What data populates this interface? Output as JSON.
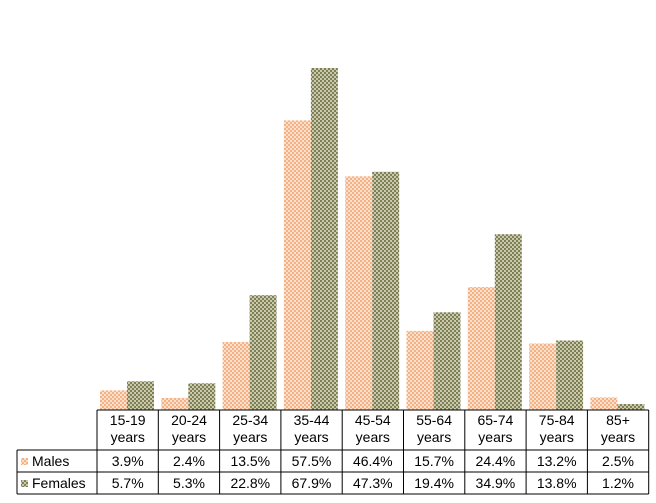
{
  "chart_data": {
    "type": "bar",
    "categories": [
      [
        "15-19",
        "years"
      ],
      [
        "20-24",
        "years"
      ],
      [
        "25-34",
        "years"
      ],
      [
        "35-44",
        "years"
      ],
      [
        "45-54",
        "years"
      ],
      [
        "55-64",
        "years"
      ],
      [
        "65-74",
        "years"
      ],
      [
        "75-84",
        "years"
      ],
      [
        "85+",
        "years"
      ]
    ],
    "series": [
      {
        "name": "Males",
        "values": [
          3.9,
          2.4,
          13.5,
          57.5,
          46.4,
          15.7,
          24.4,
          13.2,
          2.5
        ],
        "labels": [
          "3.9%",
          "2.4%",
          "13.5%",
          "57.5%",
          "46.4%",
          "15.7%",
          "24.4%",
          "13.2%",
          "2.5%"
        ],
        "color": "#f4b183",
        "pattern": "checker"
      },
      {
        "name": "Females",
        "values": [
          5.7,
          5.3,
          22.8,
          67.9,
          47.3,
          19.4,
          34.9,
          13.8,
          1.2
        ],
        "labels": [
          "5.7%",
          "5.3%",
          "22.8%",
          "67.9%",
          "47.3%",
          "19.4%",
          "34.9%",
          "13.8%",
          "1.2%"
        ],
        "color": "#7f7f55",
        "pattern": "checker"
      }
    ],
    "ylim": [
      0,
      70
    ],
    "grid": false,
    "legend": "data-table"
  }
}
